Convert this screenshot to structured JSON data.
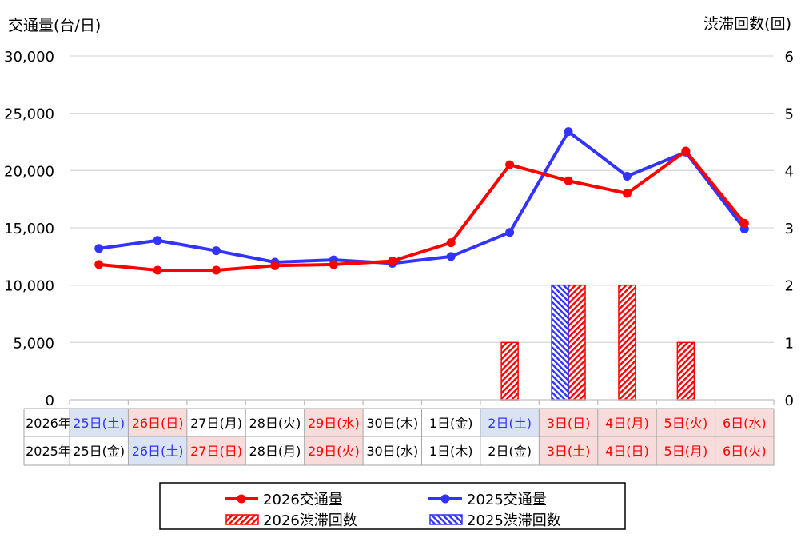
{
  "chart_data": {
    "type": "line",
    "y_left_label": "交通量(台/日)",
    "y_right_label": "渋滞回数(回)",
    "y_left_ticks": [
      "0",
      "5,000",
      "10,000",
      "15,000",
      "20,000",
      "25,000",
      "30,000"
    ],
    "y_right_ticks": [
      "0",
      "1",
      "2",
      "3",
      "4",
      "5",
      "6"
    ],
    "ylim_left": [
      0,
      30000
    ],
    "ylim_right": [
      0,
      6
    ],
    "grid": true,
    "table": {
      "row_labels": [
        "2026年",
        "2025年"
      ],
      "rows": [
        [
          "25日(土)",
          "26日(日)",
          "27日(月)",
          "28日(火)",
          "29日(水)",
          "30日(木)",
          "1日(金)",
          "2日(土)",
          "3日(日)",
          "4日(月)",
          "5日(火)",
          "6日(水)"
        ],
        [
          "25日(金)",
          "26日(土)",
          "27日(日)",
          "28日(月)",
          "29日(火)",
          "30日(水)",
          "1日(木)",
          "2日(金)",
          "3日(土)",
          "4日(日)",
          "5日(月)",
          "6日(火)"
        ]
      ],
      "styles": [
        [
          "sat",
          "hol",
          "",
          "",
          "hol",
          "",
          "",
          "sat",
          "hol",
          "hol",
          "hol",
          "hol"
        ],
        [
          "",
          "sat",
          "hol",
          "",
          "hol",
          "",
          "",
          "",
          "hol",
          "hol",
          "hol",
          "hol"
        ]
      ]
    },
    "series": [
      {
        "name": "2026交通量",
        "kind": "line",
        "axis": "left",
        "color": "#FF0000",
        "values": [
          11800,
          11300,
          11300,
          11700,
          11800,
          12100,
          13700,
          20500,
          19100,
          18000,
          21700,
          15400
        ]
      },
      {
        "name": "2025交通量",
        "kind": "line",
        "axis": "left",
        "color": "#3333FF",
        "values": [
          13200,
          13900,
          13000,
          12000,
          12200,
          11900,
          12500,
          14600,
          23400,
          19500,
          21600,
          14900
        ]
      },
      {
        "name": "2026渋滞回数",
        "kind": "bar",
        "axis": "right",
        "color": "#FF0000",
        "values": [
          0,
          0,
          0,
          0,
          0,
          0,
          0,
          1,
          2,
          2,
          1,
          0
        ]
      },
      {
        "name": "2025渋滞回数",
        "kind": "bar",
        "axis": "right",
        "color": "#3333FF",
        "values": [
          0,
          0,
          0,
          0,
          0,
          0,
          0,
          0,
          2,
          0,
          0,
          0
        ]
      }
    ],
    "legend_position": "bottom"
  }
}
